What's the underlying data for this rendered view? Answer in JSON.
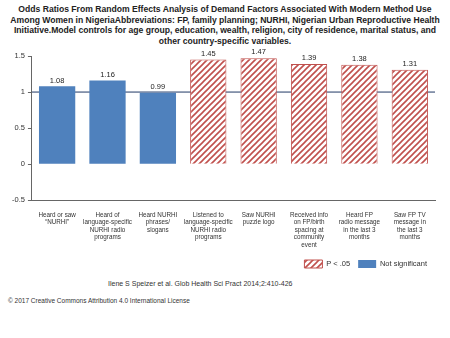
{
  "chart_data": {
    "type": "bar",
    "title": "Odds Ratios From Random Effects Analysis of Demand Factors Associated With Modern Method Use Among Women in NigeriaAbbreviations: FP, family planning; NURHI, Nigerian Urban Reproductive Health Initiative.Model controls for age group, education, wealth, religion, city of residence, marital status, and other country-specific variables.",
    "categories": [
      "Heard or saw “NURHI”",
      "Heard of language-specific NURHI radio programs",
      "Heard NURHI phrases/ slogans",
      "Listened to language-specific NURHI radio programs",
      "Saw NURHI puzzle logo",
      "Received info on FP/birth spacing at community event",
      "Heard FP radio message in the last 3 months",
      "Saw FP TV message in the last 3 months"
    ],
    "series": [
      {
        "name": "P < .05",
        "color": "#c0504d",
        "values": [
          null,
          null,
          null,
          1.45,
          1.47,
          1.39,
          1.38,
          1.31
        ]
      },
      {
        "name": "Not significant",
        "color": "#4f81bd",
        "values": [
          1.08,
          1.16,
          0.99,
          null,
          null,
          null,
          null,
          null
        ]
      }
    ],
    "ylim": [
      -0.5,
      1.5
    ],
    "yticks": [
      -0.5,
      0,
      0.5,
      1,
      1.5
    ],
    "grid": false,
    "legend": "bottom",
    "data_labels": true,
    "reference_line": 1,
    "source": "Ilene S Speizer et al. Glob Health Sci Pract 2014;2:410-426",
    "license": "© 2017 Creative Commons Attribution 4.0 International License"
  }
}
